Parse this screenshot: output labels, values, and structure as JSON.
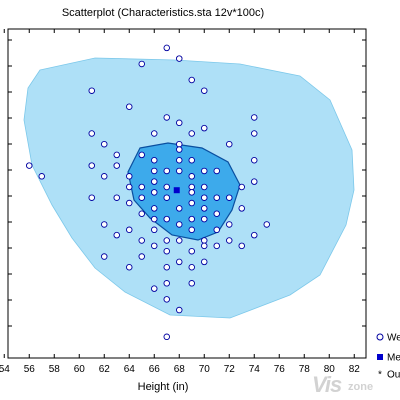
{
  "chart_data": {
    "type": "scatter",
    "title": "Scatterplot (Characteristics.sta 12v*100c)",
    "xlabel": "Height (in)",
    "ylabel": "",
    "xlim": [
      54,
      82
    ],
    "x_ticks": [
      "54",
      "56",
      "58",
      "60",
      "62",
      "64",
      "66",
      "68",
      "70",
      "72",
      "74",
      "76",
      "78",
      "80",
      "82"
    ],
    "grid": false,
    "legend_position": "bottom-right",
    "legend": [
      {
        "marker": "open-circle",
        "label": "We"
      },
      {
        "marker": "filled-square",
        "label": "Me"
      },
      {
        "marker": "asterisk",
        "label": "Ou"
      }
    ],
    "colors": {
      "outer_region": "#aee0f7",
      "inner_region": "#3daaeb",
      "inner_border": "#0a4fa0",
      "point_stroke": "#0000a0",
      "point_fill": "#ffffff",
      "median_marker": "#0000cc"
    },
    "points": [
      [
        67,
        81.0
      ],
      [
        68,
        80.0
      ],
      [
        65,
        79.5
      ],
      [
        69,
        78.0
      ],
      [
        61,
        77.0
      ],
      [
        70,
        77.0
      ],
      [
        64,
        75.5
      ],
      [
        67,
        74.5
      ],
      [
        68,
        74.0
      ],
      [
        74,
        74.5
      ],
      [
        61,
        73.0
      ],
      [
        69,
        73.0
      ],
      [
        66,
        73.0
      ],
      [
        70,
        73.5
      ],
      [
        74,
        73.0
      ],
      [
        62,
        72.0
      ],
      [
        68,
        72.0
      ],
      [
        63,
        71.0
      ],
      [
        68,
        71.5
      ],
      [
        72,
        72.0
      ],
      [
        56,
        70.0
      ],
      [
        61,
        70.0
      ],
      [
        63,
        70.0
      ],
      [
        65,
        71.0
      ],
      [
        66,
        70.5
      ],
      [
        68,
        70.5
      ],
      [
        69,
        70.5
      ],
      [
        74,
        70.5
      ],
      [
        57,
        69.0
      ],
      [
        62,
        69.0
      ],
      [
        64,
        69.0
      ],
      [
        66,
        69.5
      ],
      [
        67,
        69.5
      ],
      [
        68,
        69.5
      ],
      [
        69,
        69.0
      ],
      [
        70,
        69.5
      ],
      [
        71,
        69.5
      ],
      [
        74,
        68.5
      ],
      [
        64,
        68.0
      ],
      [
        65,
        68.0
      ],
      [
        66,
        68.5
      ],
      [
        67,
        68.0
      ],
      [
        69,
        68.0
      ],
      [
        70,
        68.0
      ],
      [
        73,
        68.0
      ],
      [
        61,
        67.0
      ],
      [
        63,
        67.0
      ],
      [
        65,
        67.0
      ],
      [
        66,
        67.5
      ],
      [
        67,
        67.0
      ],
      [
        69,
        67.5
      ],
      [
        70,
        67.0
      ],
      [
        71,
        67.0
      ],
      [
        72,
        67.0
      ],
      [
        64,
        66.5
      ],
      [
        66,
        66.0
      ],
      [
        68,
        66.0
      ],
      [
        69,
        66.5
      ],
      [
        70,
        66.0
      ],
      [
        73,
        66.0
      ],
      [
        65,
        65.5
      ],
      [
        66,
        65.0
      ],
      [
        67,
        65.0
      ],
      [
        69,
        65.0
      ],
      [
        70,
        65.0
      ],
      [
        71,
        65.5
      ],
      [
        62,
        64.5
      ],
      [
        64,
        64.0
      ],
      [
        66,
        64.0
      ],
      [
        68,
        64.5
      ],
      [
        69,
        64.0
      ],
      [
        71,
        64.0
      ],
      [
        72,
        64.5
      ],
      [
        75,
        64.5
      ],
      [
        63,
        63.5
      ],
      [
        65,
        63.0
      ],
      [
        67,
        63.0
      ],
      [
        68,
        63.0
      ],
      [
        70,
        63.0
      ],
      [
        72,
        63.0
      ],
      [
        74,
        63.5
      ],
      [
        66,
        62.5
      ],
      [
        67,
        62.0
      ],
      [
        69,
        62.0
      ],
      [
        70,
        62.5
      ],
      [
        71,
        62.5
      ],
      [
        73,
        62.5
      ],
      [
        62,
        61.5
      ],
      [
        65,
        61.5
      ],
      [
        68,
        61.0
      ],
      [
        64,
        60.5
      ],
      [
        67,
        60.5
      ],
      [
        69,
        60.5
      ],
      [
        70,
        61.0
      ],
      [
        67,
        59.0
      ],
      [
        66,
        58.5
      ],
      [
        69,
        59.0
      ],
      [
        67,
        57.5
      ],
      [
        68,
        56.5
      ],
      [
        67,
        54.0
      ]
    ],
    "median": [
      67.8,
      67.7
    ]
  }
}
